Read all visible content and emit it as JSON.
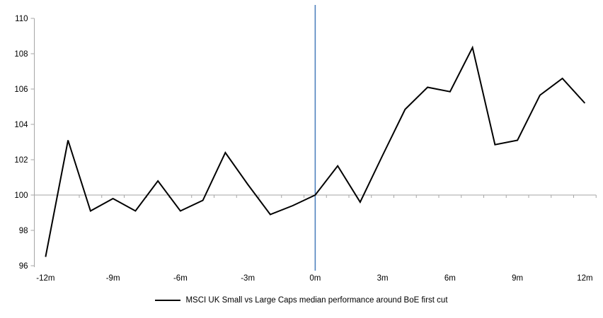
{
  "chart_data": {
    "type": "line",
    "title": "",
    "xlabel": "",
    "ylabel": "",
    "x": [
      -12,
      -11,
      -10,
      -9,
      -8,
      -7,
      -6,
      -5,
      -4,
      -3,
      -2,
      -1,
      0,
      1,
      2,
      3,
      4,
      5,
      6,
      7,
      8,
      9,
      10,
      11,
      12
    ],
    "series": [
      {
        "name": "MSCI UK Small vs Large Caps median performance around BoE first cut",
        "values": [
          96.5,
          103.1,
          99.1,
          99.8,
          99.1,
          100.8,
          99.1,
          99.7,
          102.4,
          100.6,
          98.9,
          99.4,
          100.0,
          101.65,
          99.6,
          102.25,
          104.85,
          106.1,
          105.85,
          108.35,
          102.85,
          103.1,
          105.65,
          106.6,
          105.2
        ],
        "color": "#000000"
      }
    ],
    "ylim": [
      96,
      110
    ],
    "yticks": [
      96,
      98,
      100,
      102,
      104,
      106,
      108,
      110
    ],
    "xtick_positions": [
      -12,
      -9,
      -6,
      -3,
      0,
      3,
      6,
      9,
      12
    ],
    "xtick_labels": [
      "-12m",
      "-9m",
      "-6m",
      "-3m",
      "0m",
      "3m",
      "6m",
      "9m",
      "12m"
    ],
    "baseline_value": 100,
    "event_line_x": 0,
    "grid": "off",
    "legend_position": "bottom-center",
    "colors": {
      "series_line": "#000000",
      "axis_gray": "#a6a6a6",
      "event_line_blue": "#4f81bd",
      "label_text": "#000000"
    }
  },
  "legend": {
    "label": "MSCI UK Small vs Large Caps median performance around BoE first cut"
  }
}
